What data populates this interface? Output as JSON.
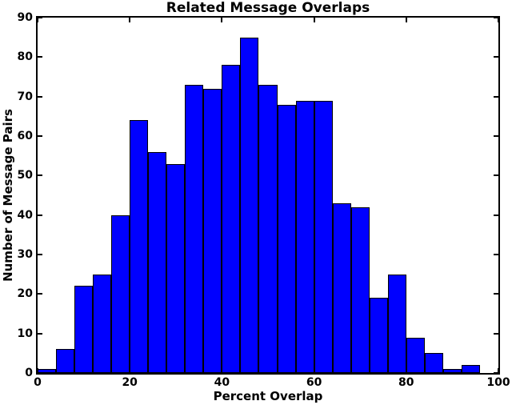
{
  "chart_data": {
    "type": "bar",
    "subtype": "histogram",
    "title": "Related Message Overlaps",
    "xlabel": "Percent Overlap",
    "ylabel": "Number of Message Pairs",
    "xlim": [
      0,
      100
    ],
    "ylim": [
      0,
      90
    ],
    "x_ticks": [
      0,
      20,
      40,
      60,
      80,
      100
    ],
    "x_tick_labels": [
      "0",
      "20",
      "40",
      "60",
      "80",
      "100"
    ],
    "y_ticks": [
      0,
      10,
      20,
      30,
      40,
      50,
      60,
      70,
      80,
      90
    ],
    "y_tick_labels": [
      "0",
      "10",
      "20",
      "30",
      "40",
      "50",
      "60",
      "70",
      "80",
      "90"
    ],
    "bins": {
      "start": 0,
      "bin_width": 4,
      "count": 24
    },
    "categories": [
      "0-4",
      "4-8",
      "8-12",
      "12-16",
      "16-20",
      "20-24",
      "24-28",
      "28-32",
      "32-36",
      "36-40",
      "40-44",
      "44-48",
      "48-52",
      "52-56",
      "56-60",
      "60-64",
      "64-68",
      "68-72",
      "72-76",
      "76-80",
      "80-84",
      "84-88",
      "88-92",
      "92-96"
    ],
    "values": [
      1,
      6,
      22,
      25,
      40,
      64,
      56,
      53,
      73,
      72,
      78,
      85,
      73,
      68,
      69,
      69,
      43,
      42,
      19,
      25,
      9,
      5,
      1,
      2
    ],
    "total_pairs": 1000,
    "grid": false,
    "legend": "none",
    "tick_direction": "in",
    "colors": {
      "bar_fill": "#0000ff",
      "bar_edge": "#000000",
      "axis": "#000000",
      "background": "#ffffff",
      "text": "#000000"
    }
  }
}
